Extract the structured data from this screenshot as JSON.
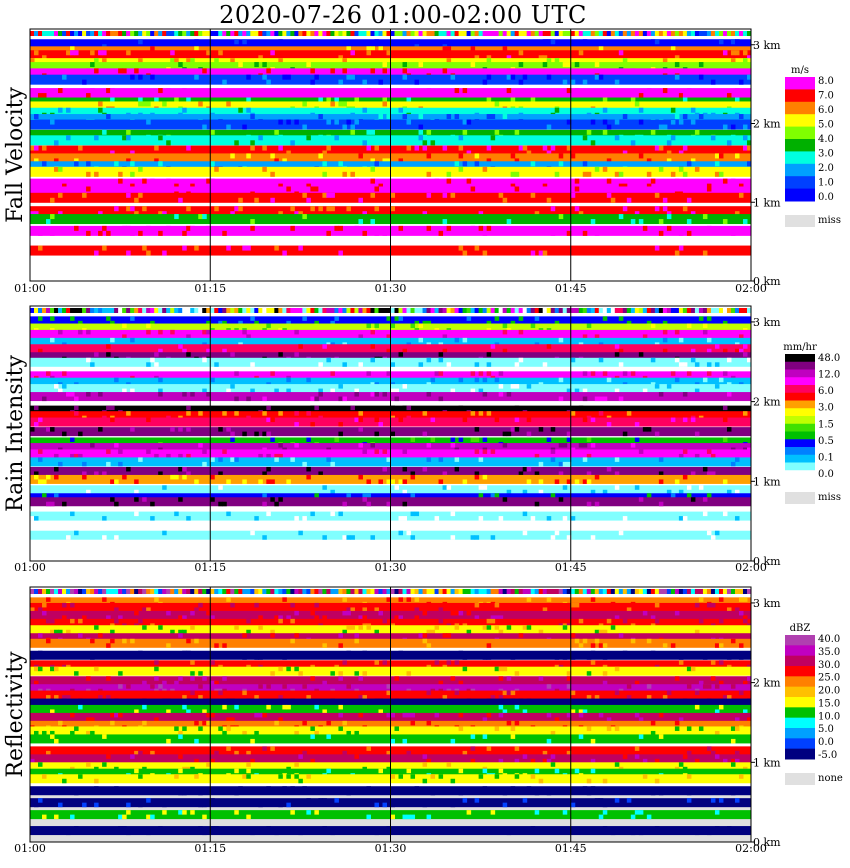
{
  "title": "2020-07-26   01:00-02:00 UTC",
  "time_ticks": [
    "01:00",
    "01:15",
    "01:30",
    "01:45",
    "02:00"
  ],
  "height_ticks": [
    "0 km",
    "1 km",
    "2 km",
    "3 km"
  ],
  "chart_data": [
    {
      "type": "heatmap",
      "title": "Fall Velocity",
      "xlabel": "",
      "ylabel": "Fall Velocity",
      "x_range": [
        "01:00",
        "02:00"
      ],
      "y_range_km": [
        0,
        3.2
      ],
      "colorbar": {
        "unit": "m/s",
        "labels": [
          "8.0",
          "7.0",
          "6.0",
          "5.0",
          "4.0",
          "3.0",
          "2.0",
          "1.0",
          "0.0"
        ],
        "colors": [
          "#ff00ff",
          "#ff0000",
          "#ff8000",
          "#ffff00",
          "#80ff00",
          "#00b000",
          "#00ffe0",
          "#00a0ff",
          "#0040ff",
          "#0000ff"
        ],
        "missing_label": "miss",
        "missing_color": "#e0e0e0"
      },
      "bands": [
        {
          "h": 3.07,
          "level": 9
        },
        {
          "h": 2.98,
          "level": 2
        },
        {
          "h": 2.93,
          "level": 1
        },
        {
          "h": 2.83,
          "level": 3
        },
        {
          "h": 2.78,
          "level": 4
        },
        {
          "h": 2.7,
          "level": 0
        },
        {
          "h": 2.62,
          "level": 8
        },
        {
          "h": 2.45,
          "level": 0
        },
        {
          "h": 2.33,
          "level": 5
        },
        {
          "h": 2.28,
          "level": 3
        },
        {
          "h": 2.2,
          "level": 6
        },
        {
          "h": 2.12,
          "level": 7
        },
        {
          "h": 2.05,
          "level": 8
        },
        {
          "h": 1.92,
          "level": 5
        },
        {
          "h": 1.85,
          "level": 6
        },
        {
          "h": 1.72,
          "level": 1
        },
        {
          "h": 1.62,
          "level": 2
        },
        {
          "h": 1.52,
          "level": 7
        },
        {
          "h": 1.45,
          "level": 3
        },
        {
          "h": 1.3,
          "level": 0
        },
        {
          "h": 1.2,
          "level": 0
        },
        {
          "h": 1.12,
          "level": 1
        },
        {
          "h": 0.95,
          "level": 1
        },
        {
          "h": 0.85,
          "level": 5
        },
        {
          "h": 0.7,
          "level": 0
        },
        {
          "h": 0.45,
          "level": 1
        }
      ]
    },
    {
      "type": "heatmap",
      "title": "Rain Intensity",
      "xlabel": "",
      "ylabel": "Rain Intensity",
      "x_range": [
        "01:00",
        "02:00"
      ],
      "y_range_km": [
        0,
        3.2
      ],
      "colorbar": {
        "unit": "mm/hr",
        "labels": [
          "48.0",
          "12.0",
          "6.0",
          "3.0",
          "1.5",
          "0.5",
          "0.1",
          "0.0"
        ],
        "colors": [
          "#000000",
          "#800080",
          "#c000c0",
          "#ff00ff",
          "#ff0060",
          "#ff0000",
          "#ffa000",
          "#ffff00",
          "#c0ff00",
          "#40e000",
          "#00c000",
          "#0000ff",
          "#0080ff",
          "#00c0ff",
          "#80ffff",
          "#ffffff"
        ],
        "missing_label": "miss",
        "missing_color": "#e0e0e0"
      },
      "bands": [
        {
          "h": 3.07,
          "level": 11
        },
        {
          "h": 2.98,
          "level": 8
        },
        {
          "h": 2.9,
          "level": 3
        },
        {
          "h": 2.8,
          "level": 13
        },
        {
          "h": 2.72,
          "level": 4
        },
        {
          "h": 2.62,
          "level": 1
        },
        {
          "h": 2.55,
          "level": 14
        },
        {
          "h": 2.38,
          "level": 3
        },
        {
          "h": 2.3,
          "level": 13
        },
        {
          "h": 2.22,
          "level": 14
        },
        {
          "h": 2.12,
          "level": 2
        },
        {
          "h": 1.95,
          "level": 0
        },
        {
          "h": 1.88,
          "level": 5
        },
        {
          "h": 1.8,
          "level": 4
        },
        {
          "h": 1.68,
          "level": 1
        },
        {
          "h": 1.55,
          "level": 10
        },
        {
          "h": 1.48,
          "level": 2
        },
        {
          "h": 1.4,
          "level": 3
        },
        {
          "h": 1.3,
          "level": 13
        },
        {
          "h": 1.18,
          "level": 1
        },
        {
          "h": 1.08,
          "level": 6
        },
        {
          "h": 0.95,
          "level": 14
        },
        {
          "h": 0.85,
          "level": 11
        },
        {
          "h": 0.8,
          "level": 1
        },
        {
          "h": 0.62,
          "level": 14
        },
        {
          "h": 0.38,
          "level": 14
        }
      ]
    },
    {
      "type": "heatmap",
      "title": "Reflectivity",
      "xlabel": "",
      "ylabel": "Reflectivity",
      "x_range": [
        "01:00",
        "02:00"
      ],
      "y_range_km": [
        0,
        3.2
      ],
      "colorbar": {
        "unit": "dBZ",
        "labels": [
          "40.0",
          "35.0",
          "30.0",
          "25.0",
          "20.0",
          "15.0",
          "10.0",
          "5.0",
          "0.0",
          "-5.0"
        ],
        "colors": [
          "#b040b0",
          "#c000c0",
          "#c00060",
          "#ff0000",
          "#ff8000",
          "#ffc000",
          "#ffff00",
          "#00c000",
          "#00ffff",
          "#00a0ff",
          "#0040ff",
          "#000080"
        ],
        "missing_label": "none",
        "missing_color": "#e0e0e0"
      },
      "bands": [
        {
          "h": 3.07,
          "level": 4
        },
        {
          "h": 3.0,
          "level": 3
        },
        {
          "h": 2.9,
          "level": 2
        },
        {
          "h": 2.8,
          "level": 3
        },
        {
          "h": 2.72,
          "level": 6
        },
        {
          "h": 2.62,
          "level": 2
        },
        {
          "h": 2.55,
          "level": 4
        },
        {
          "h": 2.4,
          "level": 12
        },
        {
          "h": 2.28,
          "level": 3
        },
        {
          "h": 2.2,
          "level": 6
        },
        {
          "h": 2.08,
          "level": 2
        },
        {
          "h": 1.98,
          "level": 1
        },
        {
          "h": 1.9,
          "level": 3
        },
        {
          "h": 1.8,
          "level": 12
        },
        {
          "h": 1.72,
          "level": 7
        },
        {
          "h": 1.62,
          "level": 2
        },
        {
          "h": 1.52,
          "level": 4
        },
        {
          "h": 1.45,
          "level": 6
        },
        {
          "h": 1.35,
          "level": 7
        },
        {
          "h": 1.2,
          "level": 3
        },
        {
          "h": 1.1,
          "level": 2
        },
        {
          "h": 1.0,
          "level": 6
        },
        {
          "h": 0.92,
          "level": 7
        },
        {
          "h": 0.85,
          "level": 6
        },
        {
          "h": 0.7,
          "level": 12
        },
        {
          "h": 0.55,
          "level": 11
        },
        {
          "h": 0.4,
          "level": 7
        },
        {
          "h": 0.2,
          "level": 12
        }
      ]
    }
  ]
}
